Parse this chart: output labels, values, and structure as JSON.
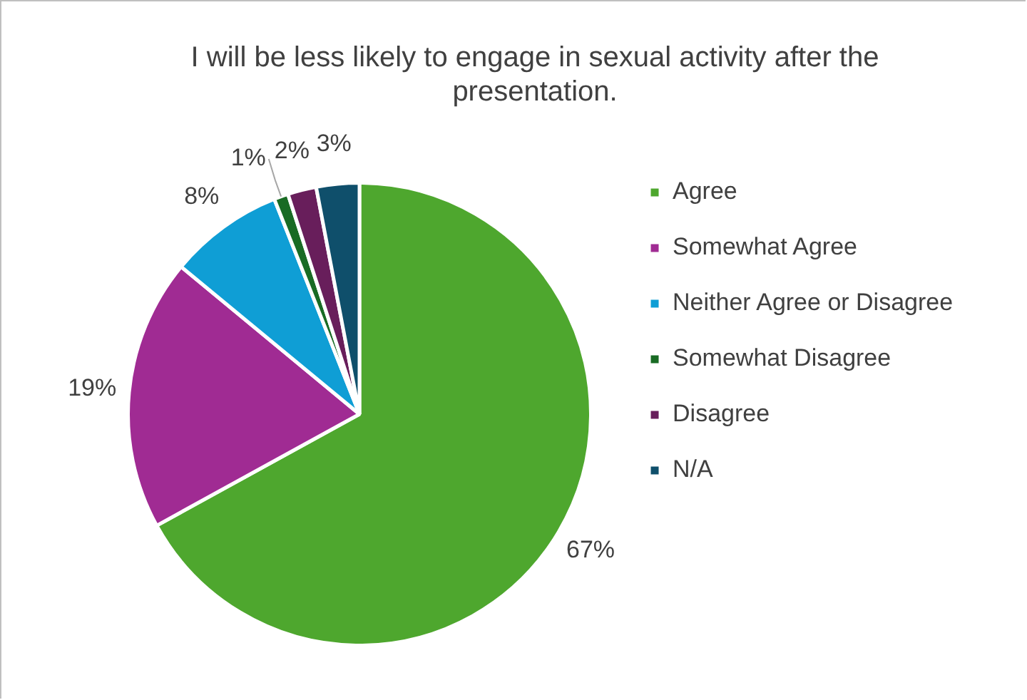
{
  "chart_data": {
    "type": "pie",
    "title": "I will be less likely to engage in sexual activity after the presentation.",
    "categories": [
      "Agree",
      "Somewhat Agree",
      "Neither Agree or Disagree",
      "Somewhat Disagree",
      "Disagree",
      "N/A"
    ],
    "values": [
      67,
      19,
      8,
      1,
      2,
      3
    ],
    "colors": [
      "#4ea72e",
      "#a02b93",
      "#0f9ed5",
      "#196b24",
      "#681e5b",
      "#0f4f6b"
    ],
    "value_labels": [
      "67%",
      "19%",
      "8%",
      "1%",
      "2%",
      "3%"
    ],
    "legend": "right"
  }
}
